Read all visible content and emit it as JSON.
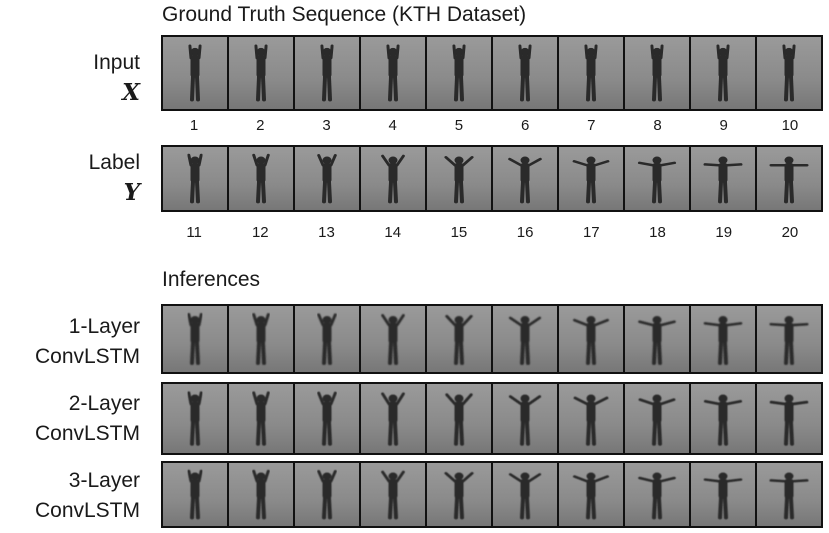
{
  "ground_truth_title": "Ground Truth Sequence (KTH Dataset)",
  "inferences_title": "Inferences",
  "input_label": {
    "name": "Input",
    "symbol": "X"
  },
  "label_label": {
    "name": "Label",
    "symbol": "Y"
  },
  "input_frame_numbers": [
    "1",
    "2",
    "3",
    "4",
    "5",
    "6",
    "7",
    "8",
    "9",
    "10"
  ],
  "label_frame_numbers": [
    "11",
    "12",
    "13",
    "14",
    "15",
    "16",
    "17",
    "18",
    "19",
    "20"
  ],
  "inference_rows": [
    {
      "line1": "1-Layer",
      "line2": "ConvLSTM"
    },
    {
      "line1": "2-Layer",
      "line2": "ConvLSTM"
    },
    {
      "line1": "3-Layer",
      "line2": "ConvLSTM"
    }
  ],
  "colors": {
    "frame_border": "#111111",
    "background_gray": "#8a8a8a",
    "figure": "#2a2a2a"
  }
}
